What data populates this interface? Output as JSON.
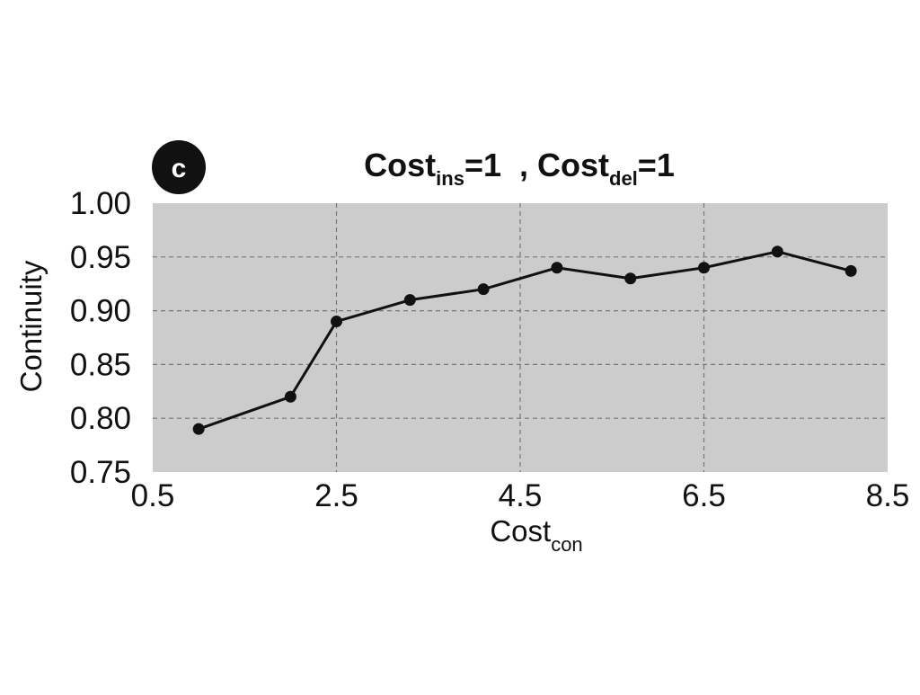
{
  "panel": {
    "label": "c"
  },
  "chart_data": {
    "type": "line",
    "title": {
      "parts": [
        "Cost",
        "ins",
        "=1  , Cost",
        "del",
        "=1"
      ]
    },
    "xlabel": {
      "main": "Cost",
      "sub": "con"
    },
    "ylabel": "Continuity",
    "xlim": [
      0.5,
      8.5
    ],
    "ylim": [
      0.75,
      1.0
    ],
    "x_ticks": [
      0.5,
      2.5,
      4.5,
      6.5,
      8.5
    ],
    "x_tick_labels": [
      "0.5",
      "2.5",
      "4.5",
      "6.5",
      "8.5"
    ],
    "y_ticks": [
      0.75,
      0.8,
      0.85,
      0.9,
      0.95,
      1.0
    ],
    "y_tick_labels": [
      "0.75",
      "0.80",
      "0.85",
      "0.90",
      "0.95",
      "1.00"
    ],
    "grid": true,
    "series": [
      {
        "x": [
          1,
          2,
          2.5,
          3.3,
          4.1,
          4.9,
          5.7,
          6.5,
          7.3,
          8.1
        ],
        "values": [
          0.79,
          0.82,
          0.89,
          0.91,
          0.92,
          0.94,
          0.93,
          0.94,
          0.955,
          0.937
        ]
      }
    ],
    "colors": {
      "plot_bg": "#cccccc",
      "line": "#111111",
      "grid": "#777777"
    }
  }
}
